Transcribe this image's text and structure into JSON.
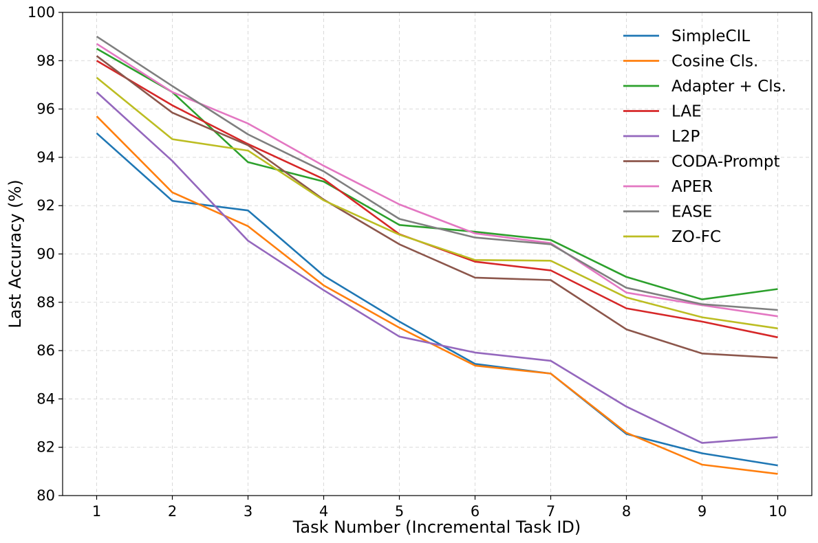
{
  "chart_data": {
    "type": "line",
    "title": "",
    "xlabel": "Task Number (Incremental Task ID)",
    "ylabel": "Last Accuracy (%)",
    "x": [
      1,
      2,
      3,
      4,
      5,
      6,
      7,
      8,
      9,
      10
    ],
    "xlim": [
      0.55,
      10.45
    ],
    "ylim": [
      80,
      100
    ],
    "yticks": [
      80,
      82,
      84,
      86,
      88,
      90,
      92,
      94,
      96,
      98,
      100
    ],
    "grid": true,
    "legend_position": "top-right",
    "series": [
      {
        "name": "SimpleCIL",
        "color": "#1f77b4",
        "values": [
          95.0,
          92.2,
          91.8,
          89.1,
          87.2,
          85.45,
          85.05,
          82.55,
          81.75,
          81.25
        ]
      },
      {
        "name": "Cosine Cls.",
        "color": "#ff7f0e",
        "values": [
          95.7,
          92.55,
          91.15,
          88.7,
          86.95,
          85.38,
          85.05,
          82.6,
          81.28,
          80.9
        ]
      },
      {
        "name": "Adapter + Cls.",
        "color": "#2ca02c",
        "values": [
          98.5,
          96.7,
          93.8,
          93.0,
          91.2,
          90.92,
          90.58,
          89.05,
          88.12,
          88.55
        ]
      },
      {
        "name": "LAE",
        "color": "#d62728",
        "values": [
          98.0,
          96.15,
          94.55,
          93.1,
          90.82,
          89.68,
          89.32,
          87.75,
          87.2,
          86.55
        ]
      },
      {
        "name": "L2P",
        "color": "#9467bd",
        "values": [
          96.7,
          93.85,
          90.55,
          88.5,
          86.58,
          85.92,
          85.58,
          83.68,
          82.18,
          82.42
        ]
      },
      {
        "name": "CODA-Prompt",
        "color": "#8c564b",
        "values": [
          98.2,
          95.85,
          94.5,
          92.25,
          90.4,
          89.02,
          88.92,
          86.88,
          85.88,
          85.7
        ]
      },
      {
        "name": "APER",
        "color": "#e377c2",
        "values": [
          98.7,
          96.7,
          95.4,
          93.65,
          92.05,
          90.85,
          90.45,
          88.4,
          87.88,
          87.42
        ]
      },
      {
        "name": "EASE",
        "color": "#7f7f7f",
        "values": [
          99.0,
          96.95,
          94.95,
          93.42,
          91.45,
          90.68,
          90.4,
          88.6,
          87.92,
          87.68
        ]
      },
      {
        "name": "ZO-FC",
        "color": "#bcbd22",
        "values": [
          97.3,
          94.75,
          94.28,
          92.22,
          90.8,
          89.75,
          89.72,
          88.2,
          87.38,
          86.92
        ]
      }
    ]
  }
}
